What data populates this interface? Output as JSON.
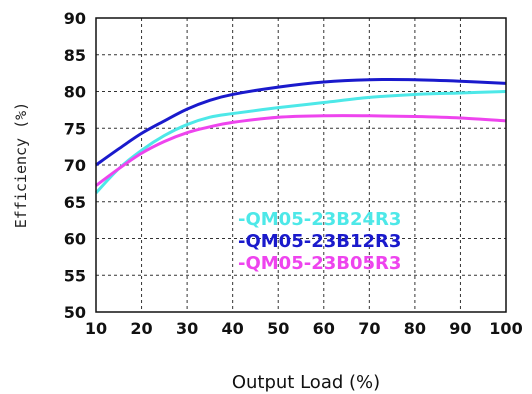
{
  "chart_data": {
    "type": "line",
    "xlabel": "Output Load (%)",
    "ylabel": "Efficiency (%)",
    "xlim": [
      10,
      100
    ],
    "ylim": [
      50,
      90
    ],
    "xticks": [
      10,
      20,
      30,
      40,
      50,
      60,
      70,
      80,
      90,
      100
    ],
    "yticks": [
      50,
      55,
      60,
      65,
      70,
      75,
      80,
      85,
      90
    ],
    "grid": true,
    "legend_position": "bottom-center",
    "series": [
      {
        "name": "-QM05-23B24R3",
        "color": "#4de8e8",
        "x": [
          10,
          15,
          20,
          25,
          30,
          35,
          40,
          50,
          60,
          70,
          80,
          90,
          100
        ],
        "y": [
          66.2,
          69.5,
          72.0,
          74.0,
          75.5,
          76.5,
          77.0,
          77.8,
          78.5,
          79.2,
          79.6,
          79.8,
          80.0
        ]
      },
      {
        "name": "-QM05-23B12R3",
        "color": "#1a1acc",
        "x": [
          10,
          15,
          20,
          25,
          30,
          35,
          40,
          50,
          60,
          70,
          80,
          90,
          100
        ],
        "y": [
          70.0,
          72.2,
          74.3,
          76.0,
          77.6,
          78.8,
          79.6,
          80.6,
          81.3,
          81.6,
          81.6,
          81.4,
          81.1
        ]
      },
      {
        "name": "-QM05-23B05R3",
        "color": "#ee44ee",
        "x": [
          10,
          15,
          20,
          25,
          30,
          35,
          40,
          50,
          60,
          70,
          80,
          90,
          100
        ],
        "y": [
          67.2,
          69.5,
          71.6,
          73.2,
          74.4,
          75.2,
          75.8,
          76.5,
          76.7,
          76.7,
          76.6,
          76.4,
          76.0
        ]
      }
    ]
  }
}
